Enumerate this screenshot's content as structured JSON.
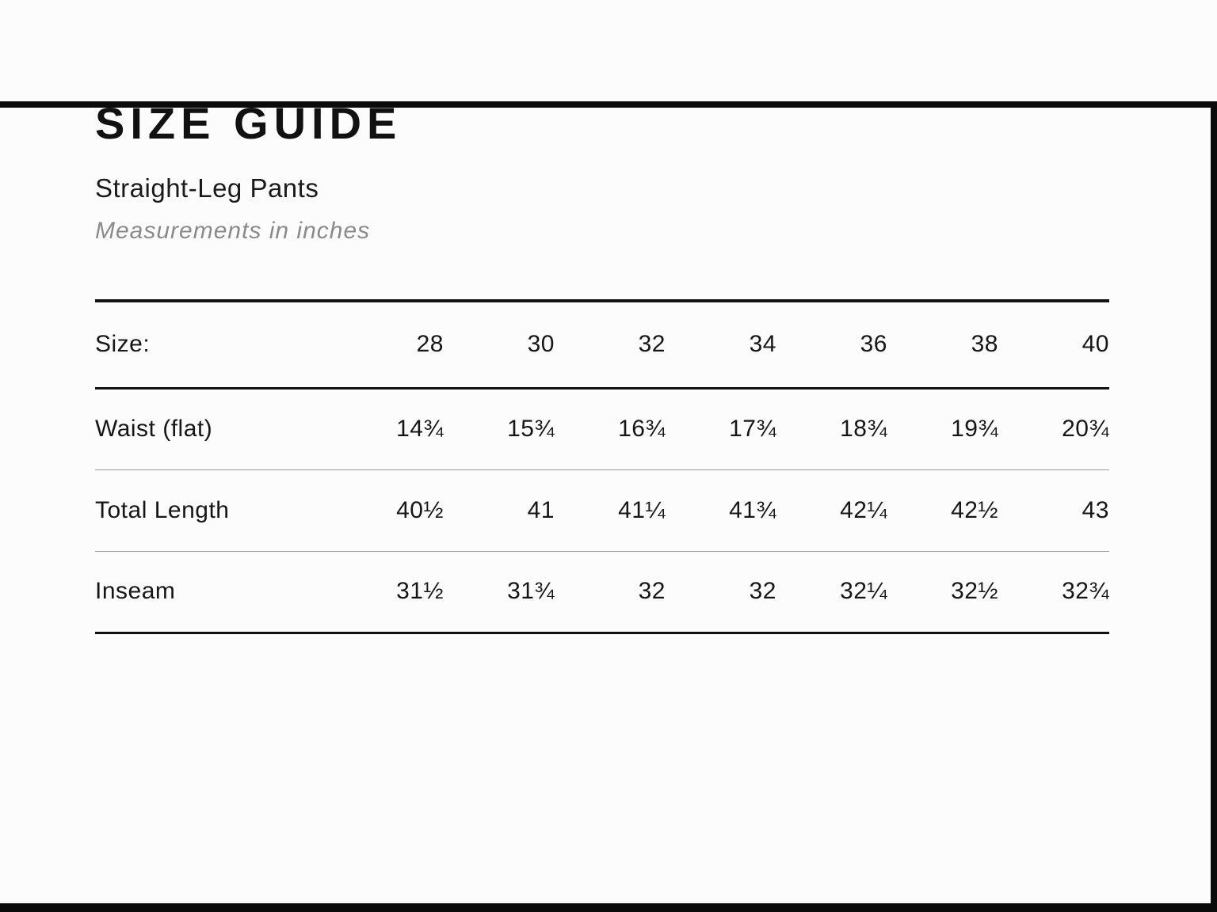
{
  "header": {
    "title": "SIZE GUIDE",
    "subtitle": "Straight-Leg Pants",
    "note": "Measurements in inches"
  },
  "table": {
    "size_label": "Size:",
    "sizes": [
      "28",
      "30",
      "32",
      "34",
      "36",
      "38",
      "40"
    ],
    "rows": [
      {
        "label": "Waist (flat)",
        "values": [
          "14¾",
          "15¾",
          "16¾",
          "17¾",
          "18¾",
          "19¾",
          "20¾"
        ]
      },
      {
        "label": "Total Length",
        "values": [
          "40½",
          "41",
          "41¼",
          "41¾",
          "42¼",
          "42½",
          "43"
        ]
      },
      {
        "label": "Inseam",
        "values": [
          "31½",
          "31¾",
          "32",
          "32",
          "32¼",
          "32½",
          "32¾"
        ]
      }
    ]
  },
  "chart_data": {
    "type": "table",
    "title": "SIZE GUIDE — Straight-Leg Pants (measurements in inches)",
    "columns": [
      "Size:",
      "28",
      "30",
      "32",
      "34",
      "36",
      "38",
      "40"
    ],
    "rows": [
      [
        "Waist (flat)",
        "14¾",
        "15¾",
        "16¾",
        "17¾",
        "18¾",
        "19¾",
        "20¾"
      ],
      [
        "Total Length",
        "40½",
        "41",
        "41¼",
        "41¾",
        "42¼",
        "42½",
        "43"
      ],
      [
        "Inseam",
        "31½",
        "31¾",
        "32",
        "32",
        "32¼",
        "32½",
        "32¾"
      ]
    ]
  },
  "colors": {
    "frame_bar": "#0b0b0b",
    "heavy_rule": "#111111",
    "light_rule": "#9b9b9b",
    "note_gray": "#8a8a8a",
    "background": "#fcfcfc",
    "text": "#161616"
  }
}
